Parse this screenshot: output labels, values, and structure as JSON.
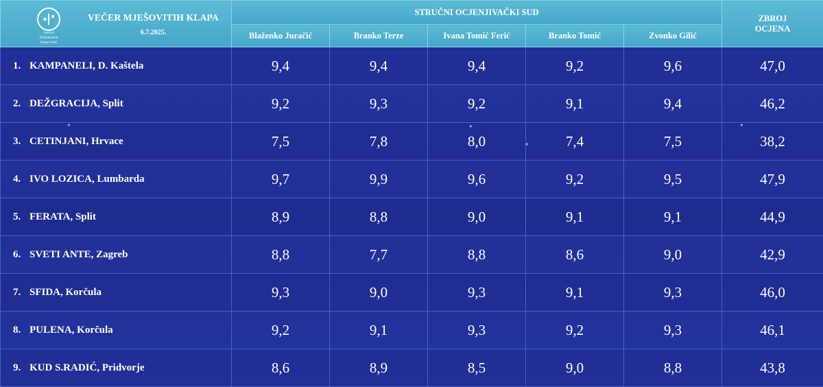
{
  "event": {
    "logo_text": [
      "Festival",
      "Dalmatinskih",
      "Klapa Omiš"
    ],
    "title": "VEČER MJEŠOVITIH KLAPA",
    "date": "6.7.2025."
  },
  "jury": {
    "title": "STRUČNI OCJENJIVAČKI SUD",
    "judges": [
      "Blaženko Juračić",
      "Branko Terze",
      "Ivana Tomić Ferić",
      "Branko Tomić",
      "Zvonko Gilić"
    ]
  },
  "total_header": [
    "ZBROJ",
    "OCJENA"
  ],
  "rows": [
    {
      "pos": "1.",
      "name": "KAMPANELI, D. Kaštela",
      "scores": [
        "9,4",
        "9,4",
        "9,4",
        "9,2",
        "9,6"
      ],
      "total": "47,0"
    },
    {
      "pos": "2.",
      "name": "DEŽGRACIJA, Split",
      "scores": [
        "9,2",
        "9,3",
        "9,2",
        "9,1",
        "9,4"
      ],
      "total": "46,2"
    },
    {
      "pos": "3.",
      "name": "CETINJANI, Hrvace",
      "scores": [
        "7,5",
        "7,8",
        "8,0",
        "7,4",
        "7,5"
      ],
      "total": "38,2"
    },
    {
      "pos": "4.",
      "name": "IVO LOZICA, Lumbarda",
      "scores": [
        "9,7",
        "9,9",
        "9,6",
        "9,2",
        "9,5"
      ],
      "total": "47,9"
    },
    {
      "pos": "5.",
      "name": "FERATA, Split",
      "scores": [
        "8,9",
        "8,8",
        "9,0",
        "9,1",
        "9,1"
      ],
      "total": "44,9"
    },
    {
      "pos": "6.",
      "name": "SVETI ANTE, Zagreb",
      "scores": [
        "8,8",
        "7,7",
        "8,8",
        "8,6",
        "9,0"
      ],
      "total": "42,9"
    },
    {
      "pos": "7.",
      "name": "SFIDA, Korčula",
      "scores": [
        "9,3",
        "9,0",
        "9,3",
        "9,1",
        "9,3"
      ],
      "total": "46,0"
    },
    {
      "pos": "8.",
      "name": "PULENA, Korčula",
      "scores": [
        "9,2",
        "9,1",
        "9,3",
        "9,2",
        "9,3"
      ],
      "total": "46,1"
    },
    {
      "pos": "9.",
      "name": "KUD S.RADIĆ, Pridvorje",
      "scores": [
        "8,6",
        "8,9",
        "8,5",
        "9,0",
        "8,8"
      ],
      "total": "43,8"
    }
  ]
}
